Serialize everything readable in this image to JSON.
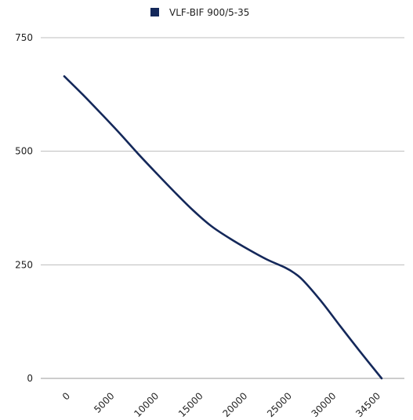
{
  "chart_data": {
    "type": "line",
    "title": "",
    "xlabel": "",
    "ylabel": "",
    "x_ticks": [
      "0",
      "5000",
      "10000",
      "15000",
      "20000",
      "25000",
      "30000",
      "34500"
    ],
    "y_ticks": [
      "0",
      "250",
      "500",
      "750"
    ],
    "xlim": [
      0,
      34500
    ],
    "ylim": [
      0,
      750
    ],
    "grid": "horizontal",
    "legend_position": "top-center",
    "series": [
      {
        "name": "VLF-BIF 900/5-35",
        "color": "#14285a",
        "x": [
          0,
          2000,
          4000,
          6000,
          8000,
          10000,
          12000,
          14000,
          16000,
          18000,
          20000,
          22000,
          24000,
          25000,
          26000,
          28000,
          30000,
          32000,
          34500
        ],
        "y": [
          665,
          625,
          583,
          540,
          495,
          452,
          410,
          370,
          335,
          308,
          284,
          262,
          244,
          232,
          215,
          168,
          115,
          63,
          0
        ]
      }
    ]
  }
}
